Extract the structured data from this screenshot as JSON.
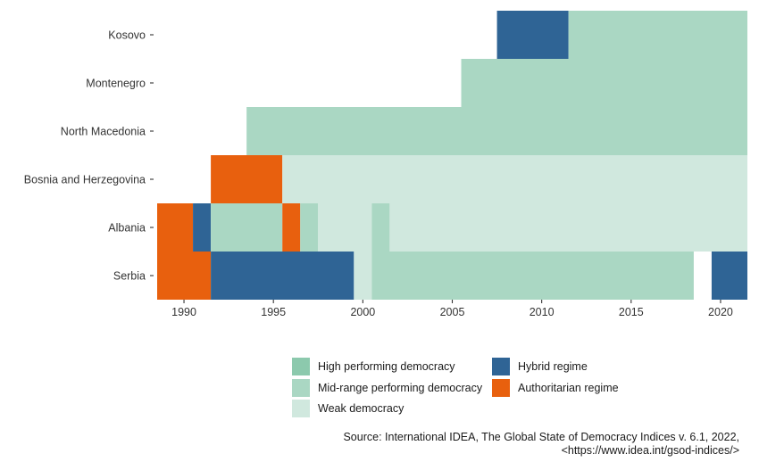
{
  "chart_data": {
    "type": "heatmap",
    "title": "",
    "xlabel": "",
    "ylabel": "",
    "x_range": [
      1989,
      2021
    ],
    "x_ticks": [
      1990,
      1995,
      2000,
      2005,
      2010,
      2015,
      2020
    ],
    "grid": false,
    "legend_position": "bottom",
    "categories": [
      "High performing democracy",
      "Mid-range performing democracy",
      "Weak democracy",
      "Hybrid regime",
      "Authoritarian regime"
    ],
    "colors": {
      "High performing democracy": "#8cc9ad",
      "Mid-range performing democracy": "#aad7c3",
      "Weak democracy": "#d0e8de",
      "Hybrid regime": "#2f6495",
      "Authoritarian regime": "#e8600e"
    },
    "countries": [
      "Kosovo",
      "Montenegro",
      "North Macedonia",
      "Bosnia and Herzegovina",
      "Albania",
      "Serbia"
    ],
    "segments": [
      {
        "country": "Kosovo",
        "start": 2008,
        "end": 2011,
        "regime": "Hybrid regime"
      },
      {
        "country": "Kosovo",
        "start": 2012,
        "end": 2021,
        "regime": "Mid-range performing democracy"
      },
      {
        "country": "Montenegro",
        "start": 2006,
        "end": 2021,
        "regime": "Mid-range performing democracy"
      },
      {
        "country": "North Macedonia",
        "start": 1994,
        "end": 2021,
        "regime": "Mid-range performing democracy"
      },
      {
        "country": "Bosnia and Herzegovina",
        "start": 1992,
        "end": 1995,
        "regime": "Authoritarian regime"
      },
      {
        "country": "Bosnia and Herzegovina",
        "start": 1996,
        "end": 2021,
        "regime": "Weak democracy"
      },
      {
        "country": "Albania",
        "start": 1989,
        "end": 1990,
        "regime": "Authoritarian regime"
      },
      {
        "country": "Albania",
        "start": 1991,
        "end": 1991,
        "regime": "Hybrid regime"
      },
      {
        "country": "Albania",
        "start": 1992,
        "end": 1995,
        "regime": "Mid-range performing democracy"
      },
      {
        "country": "Albania",
        "start": 1996,
        "end": 1996,
        "regime": "Authoritarian regime"
      },
      {
        "country": "Albania",
        "start": 1997,
        "end": 1997,
        "regime": "Mid-range performing democracy"
      },
      {
        "country": "Albania",
        "start": 1998,
        "end": 2000,
        "regime": "Weak democracy"
      },
      {
        "country": "Albania",
        "start": 2001,
        "end": 2001,
        "regime": "Mid-range performing democracy"
      },
      {
        "country": "Albania",
        "start": 2002,
        "end": 2021,
        "regime": "Weak democracy"
      },
      {
        "country": "Serbia",
        "start": 1989,
        "end": 1991,
        "regime": "Authoritarian regime"
      },
      {
        "country": "Serbia",
        "start": 1992,
        "end": 1999,
        "regime": "Hybrid regime"
      },
      {
        "country": "Serbia",
        "start": 2000,
        "end": 2000,
        "regime": "Weak democracy"
      },
      {
        "country": "Serbia",
        "start": 2001,
        "end": 2018,
        "regime": "Mid-range performing democracy"
      },
      {
        "country": "Serbia",
        "start": 2020,
        "end": 2021,
        "regime": "Hybrid regime"
      }
    ]
  },
  "legend": {
    "items": [
      {
        "label": "High performing democracy",
        "color": "#8cc9ad"
      },
      {
        "label": "Mid-range performing democracy",
        "color": "#aad7c3"
      },
      {
        "label": "Weak democracy",
        "color": "#d0e8de"
      },
      {
        "label": "Hybrid regime",
        "color": "#2f6495"
      },
      {
        "label": "Authoritarian regime",
        "color": "#e8600e"
      }
    ]
  },
  "source": {
    "line1": "Source: International IDEA, The Global State of Democracy Indices v. 6.1, 2022,",
    "line2": "<https://www.idea.int/gsod-indices/>"
  }
}
